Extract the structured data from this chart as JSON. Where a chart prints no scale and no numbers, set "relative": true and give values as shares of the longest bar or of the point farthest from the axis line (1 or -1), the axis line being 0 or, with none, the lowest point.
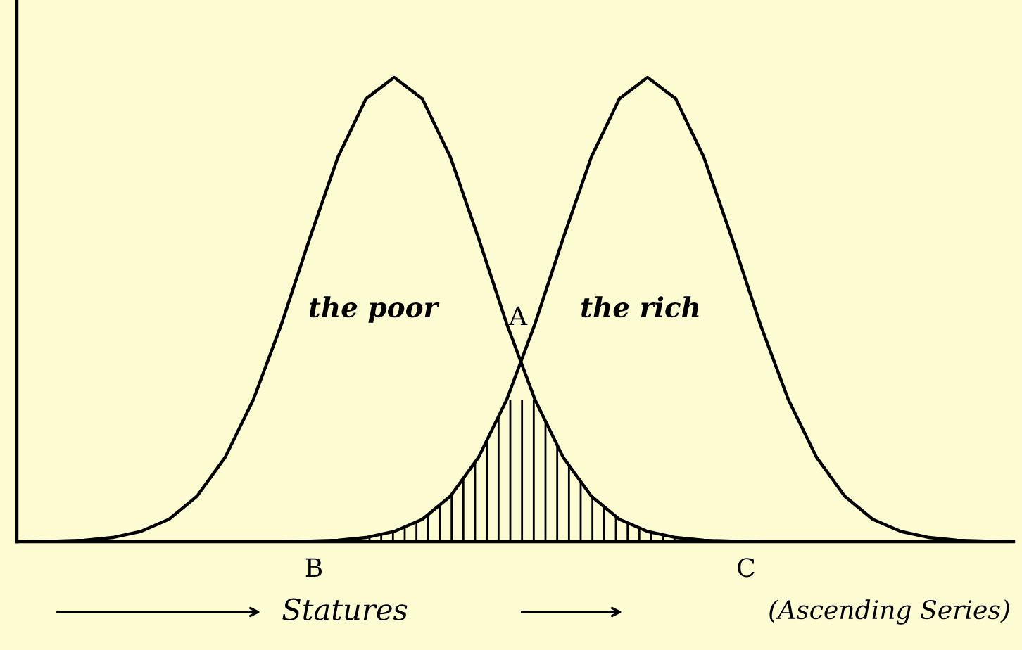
{
  "chart_data": {
    "type": "line",
    "relative": true,
    "xlabel": "Statures",
    "categories": [
      null,
      null,
      null,
      null,
      null,
      null,
      null,
      null,
      null,
      null,
      null,
      null,
      null,
      null,
      null,
      null,
      null,
      null,
      null,
      null,
      null,
      null,
      null,
      null,
      null,
      null,
      null,
      null,
      null,
      null,
      null,
      null,
      null,
      null,
      null,
      null
    ],
    "series": [
      {
        "name": "the poor",
        "color": "#000000",
        "values": [
          0,
          0.001,
          0.003,
          0.009,
          0.022,
          0.048,
          0.098,
          0.182,
          0.306,
          0.469,
          0.653,
          0.828,
          0.954,
          1,
          0.954,
          0.828,
          0.653,
          0.469,
          0.306,
          0.182,
          0.098,
          0.048,
          0.022,
          0.009,
          0.003,
          0.001,
          0,
          0,
          0,
          0,
          0,
          0,
          0,
          0,
          0,
          0
        ]
      },
      {
        "name": "the rich",
        "color": "#000000",
        "values": [
          0,
          0,
          0,
          0,
          0,
          0,
          0,
          0,
          0,
          0,
          0.001,
          0.003,
          0.009,
          0.022,
          0.048,
          0.098,
          0.182,
          0.306,
          0.469,
          0.653,
          0.828,
          0.954,
          1,
          0.954,
          0.828,
          0.653,
          0.469,
          0.306,
          0.182,
          0.098,
          0.048,
          0.022,
          0.009,
          0.003,
          0.001,
          0
        ]
      },
      {
        "type": "area",
        "color": "#000000",
        "values": [
          0,
          0,
          0,
          0,
          0,
          0,
          0,
          0,
          0,
          0,
          0.001,
          0.003,
          0.009,
          0.022,
          0.048,
          0.098,
          0.182,
          0.306,
          0.306,
          0.182,
          0.098,
          0.048,
          0.022,
          0.009,
          0.003,
          0.001,
          0,
          0,
          0,
          0,
          0,
          0,
          0,
          0,
          0,
          0
        ]
      }
    ],
    "annotations": [
      "A",
      "B",
      "C",
      "(Ascending Series)"
    ],
    "grid": false,
    "legend": false
  }
}
